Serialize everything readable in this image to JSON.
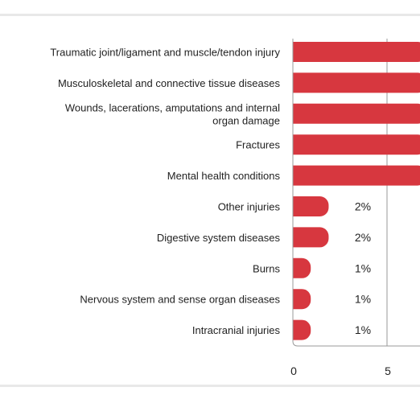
{
  "colors": {
    "bar": "#d7373f",
    "rule": "#e8e8e8",
    "axis": "#999999",
    "text": "#222222"
  },
  "chart_data": {
    "type": "bar",
    "orientation": "horizontal",
    "title": "",
    "xlabel": "",
    "ylabel": "",
    "categories": [
      "Traumatic joint/ligament and muscle/tendon injury",
      "Musculoskeletal and connective tissue diseases",
      "Wounds, lacerations, amputations and internal organ damage",
      "Fractures",
      "Mental health conditions",
      "Other injuries",
      "Digestive system diseases",
      "Burns",
      "Nervous system and sense organ diseases",
      "Intracranial injuries"
    ],
    "category_lines": [
      [
        "Traumatic joint/ligament and muscle/tendon injury"
      ],
      [
        "Musculoskeletal and connective tissue diseases"
      ],
      [
        "Wounds, lacerations, amputations and internal",
        "organ damage"
      ],
      [
        "Fractures"
      ],
      [
        "Mental health conditions"
      ],
      [
        "Other injuries"
      ],
      [
        "Digestive system diseases"
      ],
      [
        "Burns"
      ],
      [
        "Nervous system and sense organ diseases"
      ],
      [
        "Intracranial injuries"
      ]
    ],
    "values": [
      null,
      null,
      null,
      null,
      null,
      2,
      2,
      1,
      1,
      1
    ],
    "value_labels": [
      "",
      "",
      "",
      "",
      "",
      "2%",
      "2%",
      "1%",
      "1%",
      "1%"
    ],
    "x_ticks": [
      0,
      5
    ],
    "x_tick_labels": [
      "0",
      "5"
    ],
    "grid": true,
    "legend": "none"
  }
}
